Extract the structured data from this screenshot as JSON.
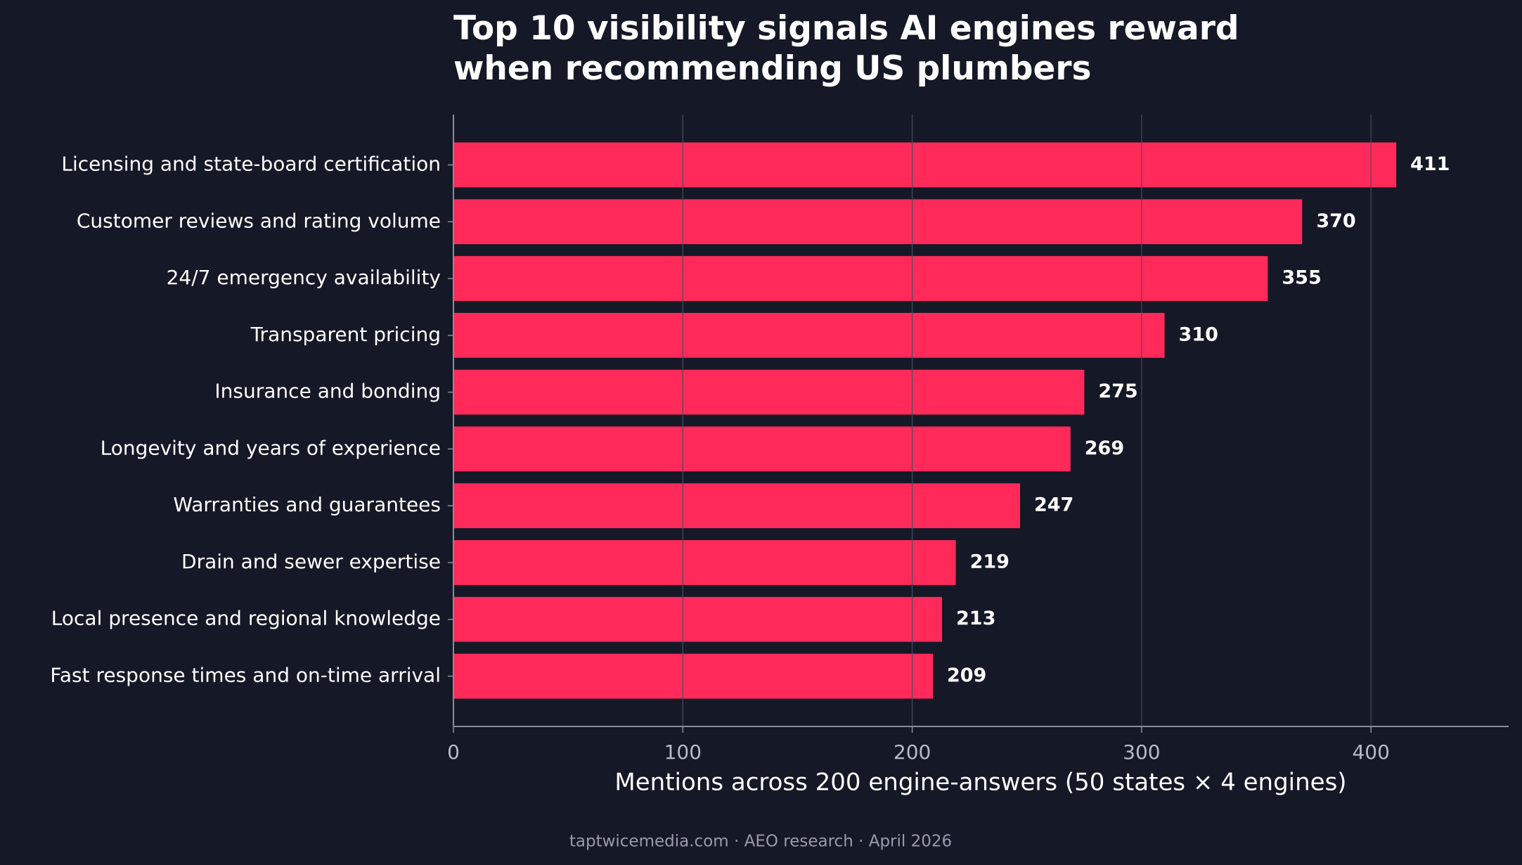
{
  "chart_data": {
    "type": "barh",
    "title": "Top 10 visibility signals AI engines reward\nwhen recommending US plumbers",
    "categories": [
      "Licensing and state-board certification",
      "Customer reviews and rating volume",
      "24/7 emergency availability",
      "Transparent pricing",
      "Insurance and bonding",
      "Longevity and years of experience",
      "Warranties and guarantees",
      "Drain and sewer expertise",
      "Local presence and regional knowledge",
      "Fast response times and on-time arrival"
    ],
    "values": [
      411,
      370,
      355,
      310,
      275,
      269,
      247,
      219,
      213,
      209
    ],
    "color": "#ff2a5a",
    "xlim": [
      0,
      460
    ],
    "xticks": [
      0,
      100,
      200,
      300,
      400
    ],
    "grid": true,
    "xlabel": "Mentions across 200 engine-answers (50 states × 4 engines)",
    "footer": "taptwicemedia.com · AEO research · April 2026"
  }
}
